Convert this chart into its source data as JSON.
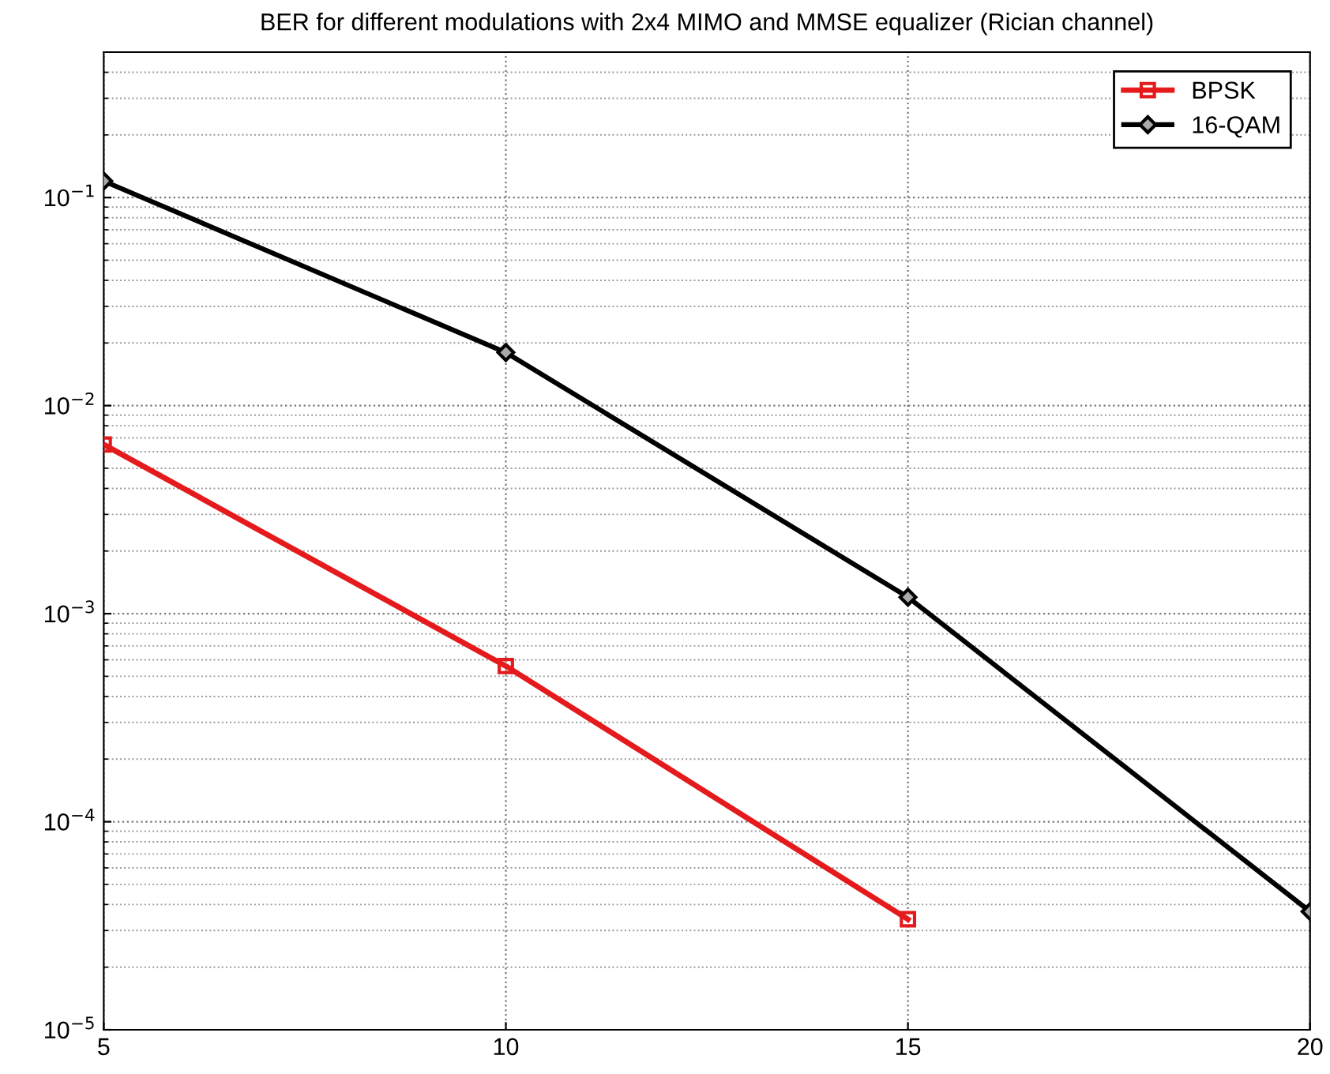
{
  "chart_data": {
    "type": "line",
    "title": "BER for different modulations with 2x4 MIMO and MMSE equalizer (Rician channel)",
    "x": [
      5,
      10,
      15,
      20
    ],
    "series": [
      {
        "name": "BPSK",
        "color": "#e41a1c",
        "marker": "square",
        "values": [
          0.0065,
          0.00056,
          3.4e-05,
          null
        ]
      },
      {
        "name": "16-QAM",
        "color": "#000000",
        "marker": "diamond",
        "values": [
          0.12,
          0.018,
          0.0012,
          3.7e-05
        ]
      }
    ],
    "log": "y",
    "xlim": [
      5,
      20
    ],
    "xticks": [
      5,
      10,
      15,
      20
    ],
    "ylim": [
      1e-05,
      0.5
    ],
    "yticks": [
      {
        "value": 1e-05,
        "label": "10$^{−5}$"
      },
      {
        "value": 0.0001,
        "label": "10$^{−4}$"
      },
      {
        "value": 0.001,
        "label": "10$^{−3}$"
      },
      {
        "value": 0.01,
        "label": "10$^{−2}$"
      },
      {
        "value": 0.1,
        "label": "10$^{−1}$"
      }
    ],
    "grid": true,
    "legend": "top right",
    "line_style": "solid"
  }
}
